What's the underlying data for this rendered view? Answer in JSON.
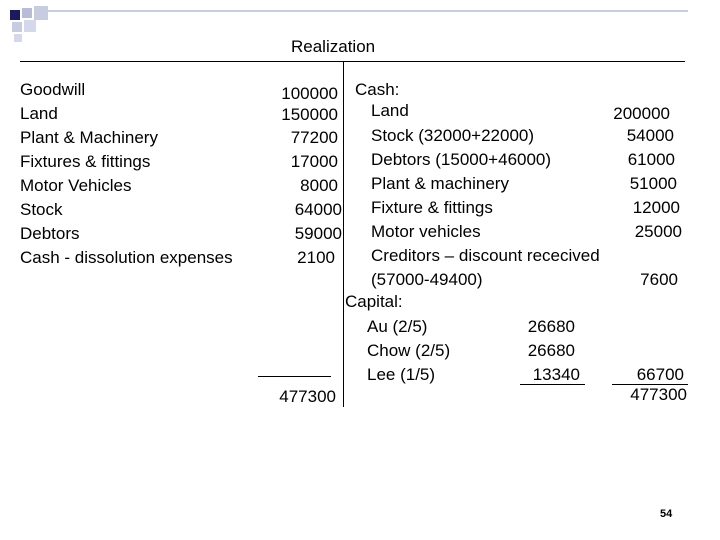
{
  "title": "Realization",
  "debit": {
    "items": [
      {
        "label": "Goodwill",
        "amount": "100000"
      },
      {
        "label": "Land",
        "amount": "150000"
      },
      {
        "label": "Plant & Machinery",
        "amount": "77200"
      },
      {
        "label": "Fixtures & fittings",
        "amount": "17000"
      },
      {
        "label": "Motor Vehicles",
        "amount": "8000"
      },
      {
        "label": "Stock",
        "amount": "64000"
      },
      {
        "label": "Debtors",
        "amount": "59000"
      },
      {
        "label": "Cash - dissolution expenses",
        "amount": "2100"
      }
    ],
    "total": "477300"
  },
  "credit": {
    "cash_heading": "Cash:",
    "cash_items": [
      {
        "label": "Land",
        "amount": "200000"
      },
      {
        "label": "Stock  (32000+22000)",
        "amount": "54000"
      },
      {
        "label": "Debtors (15000+46000)",
        "amount": "61000"
      },
      {
        "label": "Plant & machinery",
        "amount": "51000"
      },
      {
        "label": "Fixture & fittings",
        "amount": "12000"
      },
      {
        "label": "Motor vehicles",
        "amount": "25000"
      },
      {
        "label": "Creditors – discount rececived",
        "amount": ""
      },
      {
        "label": "(57000-49400)",
        "amount": "7600"
      }
    ],
    "capital_heading": "Capital:",
    "capital_items": [
      {
        "label": "Au (2/5)",
        "amount": "26680"
      },
      {
        "label": "Chow (2/5)",
        "amount": "26680"
      },
      {
        "label": "Lee (1/5)",
        "amount": "13340"
      }
    ],
    "capital_total": "66700",
    "total": "477300"
  },
  "page_number": "54"
}
